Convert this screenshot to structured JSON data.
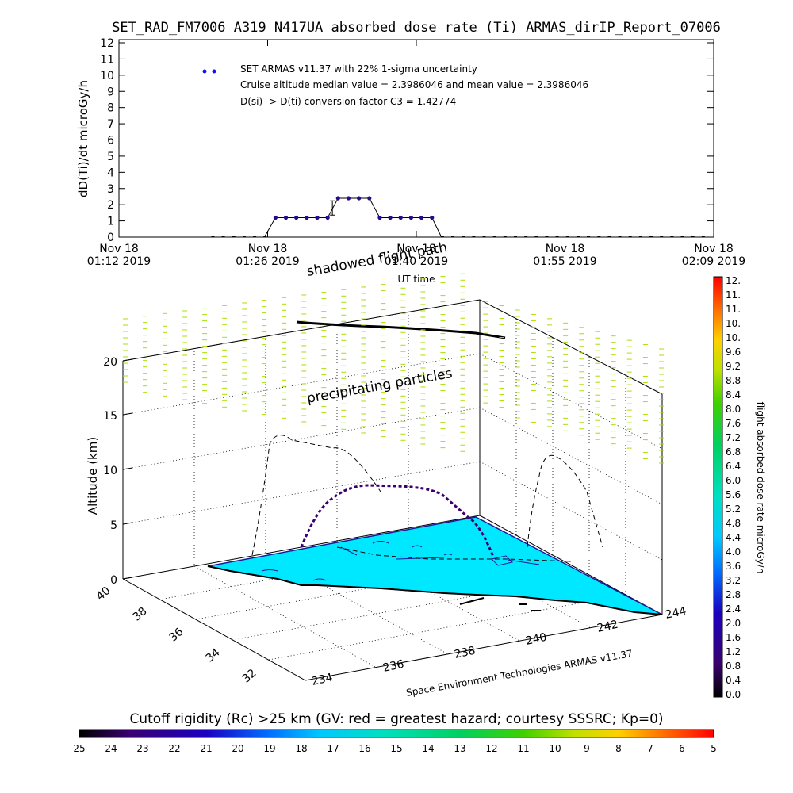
{
  "chart_data": [
    {
      "type": "scatter",
      "title": "SET_RAD_FM7006  A319 N417UA absorbed dose rate (Ti) ARMAS_dirIP_Report_07006",
      "ylabel": "dD(Ti)/dt microGy/h",
      "xlabel": "UT time",
      "ylim": [
        0,
        12
      ],
      "yticks": [
        "0",
        "1",
        "2",
        "3",
        "4",
        "5",
        "6",
        "7",
        "8",
        "9",
        "10",
        "11",
        "12"
      ],
      "xticks": [
        {
          "date": "Nov 18",
          "time": "01:12 2019"
        },
        {
          "date": "Nov 18",
          "time": "01:26 2019"
        },
        {
          "date": "Nov 18",
          "time": "01:40 2019"
        },
        {
          "date": "Nov 18",
          "time": "01:55 2019"
        },
        {
          "date": "Nov 18",
          "time": "02:09 2019"
        }
      ],
      "legend": [
        "SET ARMAS v11.37 with 22% 1-sigma uncertainty",
        "Cruise altitude median value = 2.3986046 and mean value = 2.3986046",
        "D(si) -> D(ti) conversion factor C3 = 1.42774"
      ],
      "series": [
        {
          "x": [
            "01:27",
            "01:28",
            "01:29",
            "01:30",
            "01:31",
            "01:32",
            "01:33",
            "01:34",
            "01:35",
            "01:36",
            "01:37",
            "01:38",
            "01:39",
            "01:40",
            "01:41",
            "01:42"
          ],
          "values": [
            1.2,
            1.2,
            1.2,
            1.2,
            1.2,
            1.2,
            2.4,
            2.4,
            2.4,
            2.4,
            1.2,
            1.2,
            1.2,
            1.2,
            1.2,
            1.2
          ]
        }
      ],
      "error_bar": {
        "x": "01:32",
        "value": 1.8
      }
    },
    {
      "type": "scatter",
      "zlabel": "Altitude (km)",
      "zticks": [
        "0",
        "5",
        "10",
        "15",
        "20"
      ],
      "lat_ticks": [
        "40",
        "38",
        "36",
        "34",
        "32"
      ],
      "lon_ticks": [
        "234",
        "236",
        "238",
        "240",
        "242",
        "244"
      ],
      "annotations": [
        "shadowed flight path",
        "precipitating particles",
        "Space Environment Technologies ARMAS v11.37"
      ]
    },
    {
      "type": "colorbar",
      "label": "flight absorbed dose rate microGy/h",
      "ticks": [
        "0.0",
        "0.4",
        "0.8",
        "1.2",
        "1.6",
        "2.0",
        "2.4",
        "2.8",
        "3.2",
        "3.6",
        "4.0",
        "4.4",
        "4.8",
        "5.2",
        "5.6",
        "6.0",
        "6.4",
        "6.8",
        "7.2",
        "7.6",
        "8.0",
        "8.4",
        "8.8",
        "9.2",
        "9.6",
        "10.",
        "10.",
        "11.",
        "11.",
        "12."
      ]
    },
    {
      "type": "colorbar",
      "label": "Cutoff rigidity (Rc) >25 km (GV: red = greatest hazard; courtesy SSSRC; Kp=0)",
      "ticks": [
        "25",
        "24",
        "23",
        "22",
        "21",
        "20",
        "19",
        "18",
        "17",
        "16",
        "15",
        "14",
        "13",
        "12",
        "11",
        "10",
        "9",
        "8",
        "7",
        "6",
        "5"
      ]
    }
  ],
  "colors": {
    "series": "#2a0a8c",
    "connector": "#000000",
    "legend_dot": "#1010ff",
    "precip": "#a8e000",
    "map_fill": "#00e8ff",
    "map_edge": "#1a1a9c"
  }
}
